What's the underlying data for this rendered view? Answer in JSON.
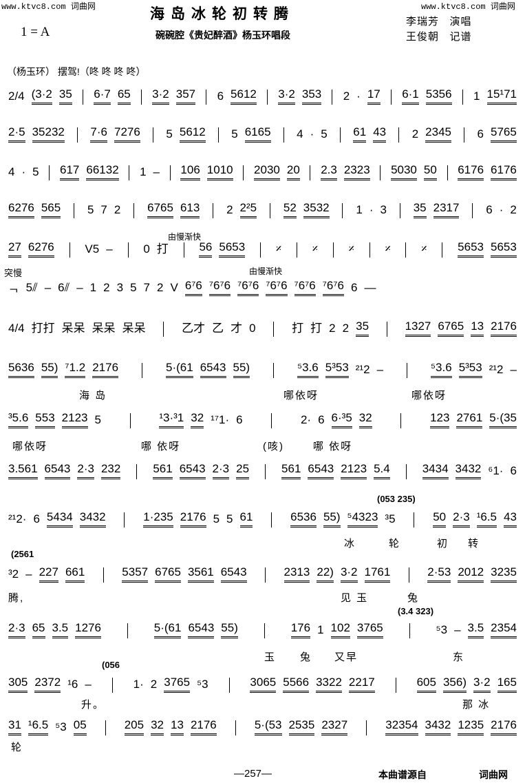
{
  "watermark": {
    "left": "www.ktvc8.com 词曲网",
    "right": "www.ktvc8.com 词曲网"
  },
  "title": "海岛冰轮初转腾",
  "key": "1 = A",
  "subtitle": "碗碗腔《贵妃醉酒》杨玉环唱段",
  "credits": [
    {
      "name": "李瑞芳",
      "role": "演唱"
    },
    {
      "name": "王俊朝",
      "role": "记谱"
    }
  ],
  "intro": "（杨玉环） 摆驾!（咚 咚 咚 咚）",
  "systems": [
    {
      "notes": [
        "2/4 (3·2 35",
        "6·7 65",
        "3·2 357",
        "6 5612",
        "3·2 353",
        "2 · 17",
        "6·1 5356",
        "1 15¹71"
      ]
    },
    {
      "notes": [
        "2·5 35232",
        "7·6 7276",
        "5 5612",
        "5 6165",
        "4 · 5",
        "61 43",
        "2 2345",
        "6 5765"
      ]
    },
    {
      "notes": [
        "4 · 5",
        "617 66132",
        "1 –",
        "106 1010",
        "2030 20",
        "2.3 2323",
        "5030 50",
        "6176 6176"
      ]
    },
    {
      "notes": [
        "6276 565",
        "5 7 2",
        "6765 613",
        "2 2²5",
        "52 3532",
        "1 · 3",
        "35 2317",
        "6 · 2"
      ]
    },
    {
      "notes": [
        "27 6276",
        "V5 –",
        "0 打",
        "56 5653",
        "𝄎",
        "𝄎",
        "𝄎",
        "𝄎",
        "𝄎",
        "5653 5653"
      ]
    },
    {
      "notes": [
        "ᆨ 5⫽ – 6⫽ – 1 2 3 5 7 2 V 6⁷6 ⁷6⁷6 ⁷6⁷6 ⁷6⁷6 ⁷6⁷6 ⁷6⁷6 6 —"
      ]
    },
    {
      "notes": [
        "4/4 打打 呆呆 呆呆 呆呆",
        "乙才 乙 才 0",
        "打 打 2 2 35",
        "1327 6765 13 2176"
      ]
    },
    {
      "notes": [
        "5636 55) ⁷1.2 2176",
        "5·(61 6543 55)",
        "⁵3.6 5³53 ²¹2 –",
        "⁵3.6 5³53 ²¹2 –"
      ]
    },
    {
      "notes": [
        "³5.6 553 2123 5",
        "¹3·³1 32 ¹⁷1· 6",
        "2· 6 6·³5 32",
        "123 2761 5·(35"
      ]
    },
    {
      "notes": [
        "3.561 6543 2·3 232",
        "561 6543 2·3 25",
        "561 6543 2123 5.4",
        "3434 3432 ⁶1· 6"
      ]
    },
    {
      "notes": [
        "²¹2· 6 5434 3432",
        "1·235 2176 5 5 61",
        "6536 55) ⁵4323 ³5",
        "50 2·3 ¹6.5 43"
      ]
    },
    {
      "notes": [
        "³2 – 227 661",
        "5357 6765 3561 6543",
        "2313 22) 3·2 1761",
        "2·53 2012 3235"
      ]
    },
    {
      "notes": [
        "2·3 65 3.5 1276",
        "5·(61 6543 55)",
        "176 1 102 3765",
        "⁵3 – 3.5 2354"
      ]
    },
    {
      "notes": [
        "305 2372 ¹6 –",
        "1· 2 3765 ⁵3",
        "3065 5566 3322 2217",
        "605 356) 3·2 165"
      ]
    },
    {
      "notes": [
        "31 ¹6.5 ⁵3 05",
        "205 32 13 2176",
        "5·(53 2535 2327",
        "32354 3432 1235 2176"
      ]
    }
  ],
  "tempo_marks": {
    "accel1": "由慢渐快",
    "accel2": "由慢渐快",
    "sudden_slow": "突慢"
  },
  "parentheticals": {
    "p1": "(053  235)",
    "p2": "(2561",
    "p3": "(3.4  323)",
    "p4": "(056"
  },
  "lyrics": {
    "l8a": "海    岛",
    "l8b": "哪依呀",
    "l8c": "哪依呀",
    "l9a": "哪依呀",
    "l9b": "哪  依呀",
    "l9c": "(咳)",
    "l9d": "哪  依呀",
    "l11a": "冰",
    "l11b": "轮",
    "l11c": "初",
    "l11d": "转",
    "l12a": "腾,",
    "l12b": "见  玉",
    "l12c": "兔",
    "l13a": "玉",
    "l13b": "兔",
    "l13c": "又早",
    "l13d": "东",
    "l14a": "升。",
    "l14b": "那  冰",
    "l15a": "轮"
  },
  "footer": {
    "page": "—257—",
    "source": "本曲谱源自",
    "site": "词曲网"
  }
}
